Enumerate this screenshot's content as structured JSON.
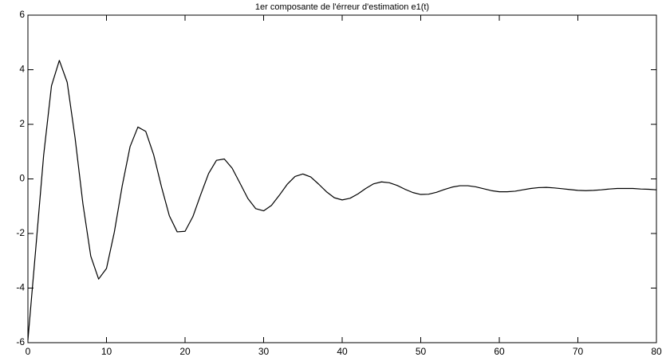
{
  "chart_data": {
    "type": "line",
    "title": "1er composante de l'érreur d'estimation e1(t)",
    "x": [
      0,
      1,
      2,
      3,
      4,
      5,
      6,
      7,
      8,
      9,
      10,
      11,
      12,
      13,
      14,
      15,
      16,
      17,
      18,
      19,
      20,
      21,
      22,
      23,
      24,
      25,
      26,
      27,
      28,
      29,
      30,
      31,
      32,
      33,
      34,
      35,
      36,
      37,
      38,
      39,
      40,
      41,
      42,
      43,
      44,
      45,
      46,
      47,
      48,
      49,
      50,
      51,
      52,
      53,
      54,
      55,
      56,
      57,
      58,
      59,
      60,
      61,
      62,
      63,
      64,
      65,
      66,
      67,
      68,
      69,
      70,
      71,
      72,
      73,
      74,
      75,
      76,
      77,
      78,
      79,
      80
    ],
    "series": [
      {
        "color": "#000000",
        "values": [
          -5.9,
          -2.55,
          0.86,
          3.41,
          4.34,
          3.54,
          1.51,
          -0.91,
          -2.83,
          -3.67,
          -3.28,
          -1.95,
          -0.26,
          1.18,
          1.9,
          1.74,
          0.89,
          -0.29,
          -1.35,
          -1.94,
          -1.92,
          -1.38,
          -0.57,
          0.2,
          0.68,
          0.73,
          0.39,
          -0.16,
          -0.72,
          -1.09,
          -1.17,
          -0.97,
          -0.6,
          -0.2,
          0.09,
          0.18,
          0.07,
          -0.19,
          -0.47,
          -0.69,
          -0.77,
          -0.71,
          -0.55,
          -0.35,
          -0.18,
          -0.11,
          -0.14,
          -0.24,
          -0.38,
          -0.5,
          -0.57,
          -0.56,
          -0.49,
          -0.39,
          -0.3,
          -0.25,
          -0.25,
          -0.29,
          -0.36,
          -0.43,
          -0.47,
          -0.47,
          -0.45,
          -0.4,
          -0.35,
          -0.32,
          -0.31,
          -0.33,
          -0.36,
          -0.39,
          -0.42,
          -0.43,
          -0.42,
          -0.4,
          -0.37,
          -0.35,
          -0.35,
          -0.35,
          -0.37,
          -0.38,
          -0.4
        ]
      }
    ],
    "xlim": [
      0,
      80
    ],
    "xticks": [
      0,
      10,
      20,
      30,
      40,
      50,
      60,
      70,
      80
    ],
    "ylim": [
      -6,
      6
    ],
    "yticks": [
      -6,
      -4,
      -2,
      0,
      2,
      4,
      6
    ]
  }
}
